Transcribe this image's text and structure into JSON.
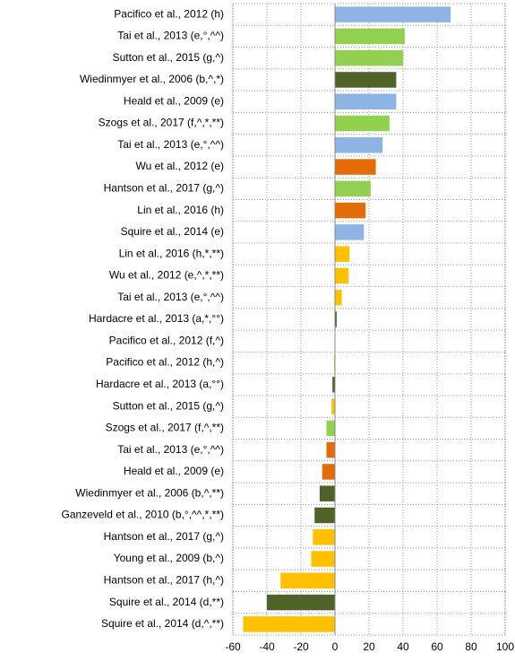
{
  "chart_data": {
    "type": "barh",
    "categories": [
      "Pacifico et al., 2012 (h)",
      "Tai et al., 2013 (e,°,^^)",
      "Sutton et al., 2015 (g,^)",
      "Wiedinmyer et al., 2006 (b,^,*)",
      "Heald et al., 2009 (e)",
      "Szogs et al.,  2017 (f,^,*,**)",
      "Tai et al., 2013 (e,°,^^)",
      "Wu et al., 2012 (e)",
      "Hantson et al., 2017 (g,^)",
      "Lin et al., 2016 (h)",
      "Squire et al., 2014 (e)",
      "Lin et al., 2016 (h,*,**)",
      "Wu et al., 2012 (e,^,*,**)",
      "Tai et al., 2013 (e,°,^^)",
      "Hardacre et al., 2013 (a,*,°°)",
      "Pacifico et al., 2012 (f,^)",
      "Pacifico et al., 2012 (h,^)",
      "Hardacre et al., 2013 (a,°°)",
      "Sutton et al., 2015 (g,^)",
      "Szogs et al.,  2017 (f,^,**)",
      "Tai et al., 2013 (e,°,^^)",
      "Heald et al., 2009 (e)",
      "Wiedinmyer et al., 2006 (b,^,**)",
      "Ganzeveld et al., 2010 (b,°,^^,*,**)",
      "Hantson et al., 2017 (g,^)",
      "Young et al., 2009 (b,^)",
      "Hantson et al., 2017 (h,^)",
      "Squire et al., 2014 (d,**)",
      "Squire et al., 2014 (d,^,**)"
    ],
    "values": [
      68,
      41,
      40,
      36,
      36,
      32,
      28,
      24,
      21,
      18,
      17,
      8.5,
      8,
      4,
      1,
      0,
      -0.5,
      -1.5,
      -2,
      -5,
      -5,
      -7.5,
      -9,
      -12,
      -13,
      -14,
      -32,
      -40,
      -54
    ],
    "colors": [
      "#8eb4e3",
      "#92d050",
      "#92d050",
      "#4f6228",
      "#8eb4e3",
      "#92d050",
      "#8eb4e3",
      "#e36c09",
      "#92d050",
      "#e36c09",
      "#8eb4e3",
      "#ffc000",
      "#ffc000",
      "#ffc000",
      "#4f6228",
      "#ffc000",
      "#ffc000",
      "#4f6228",
      "#ffc000",
      "#92d050",
      "#e36c09",
      "#e36c09",
      "#4f6228",
      "#4f6228",
      "#ffc000",
      "#ffc000",
      "#ffc000",
      "#4f6228",
      "#ffc000"
    ],
    "xlim": [
      -60,
      100
    ],
    "xticks": [
      -60,
      -40,
      -20,
      0,
      20,
      40,
      60,
      80,
      100
    ],
    "grid": true
  }
}
